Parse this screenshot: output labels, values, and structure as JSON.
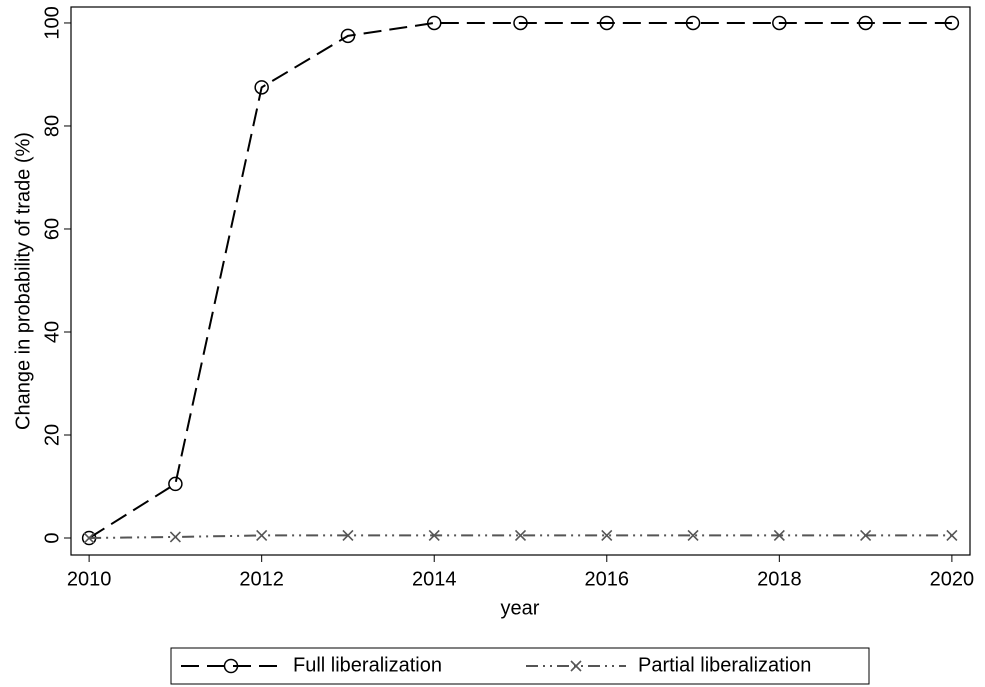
{
  "chart_data": {
    "type": "line",
    "x_label": "year",
    "y_label": "Change in probability of trade (%)",
    "x": [
      2010,
      2011,
      2012,
      2013,
      2014,
      2015,
      2016,
      2017,
      2018,
      2019,
      2020
    ],
    "series": [
      {
        "name": "Full liberalization",
        "color": "#000000",
        "dash": "18 8",
        "marker": "circle",
        "values": [
          0,
          10.5,
          87.5,
          97.5,
          100,
          100,
          100,
          100,
          100,
          100,
          100
        ]
      },
      {
        "name": "Partial liberalization",
        "color": "#555555",
        "dash": "12 5 2 5 2 5",
        "marker": "x",
        "values": [
          0,
          0.2,
          0.5,
          0.5,
          0.5,
          0.5,
          0.5,
          0.5,
          0.5,
          0.5,
          0.5
        ]
      }
    ],
    "xlim": [
      2009.79,
      2020.21
    ],
    "xticks": [
      2010,
      2012,
      2014,
      2016,
      2018,
      2020
    ],
    "ylim": [
      -3.3,
      103.1
    ],
    "yticks": [
      0,
      20,
      40,
      60,
      80,
      100
    ],
    "grid": false,
    "legend": "bottom"
  }
}
